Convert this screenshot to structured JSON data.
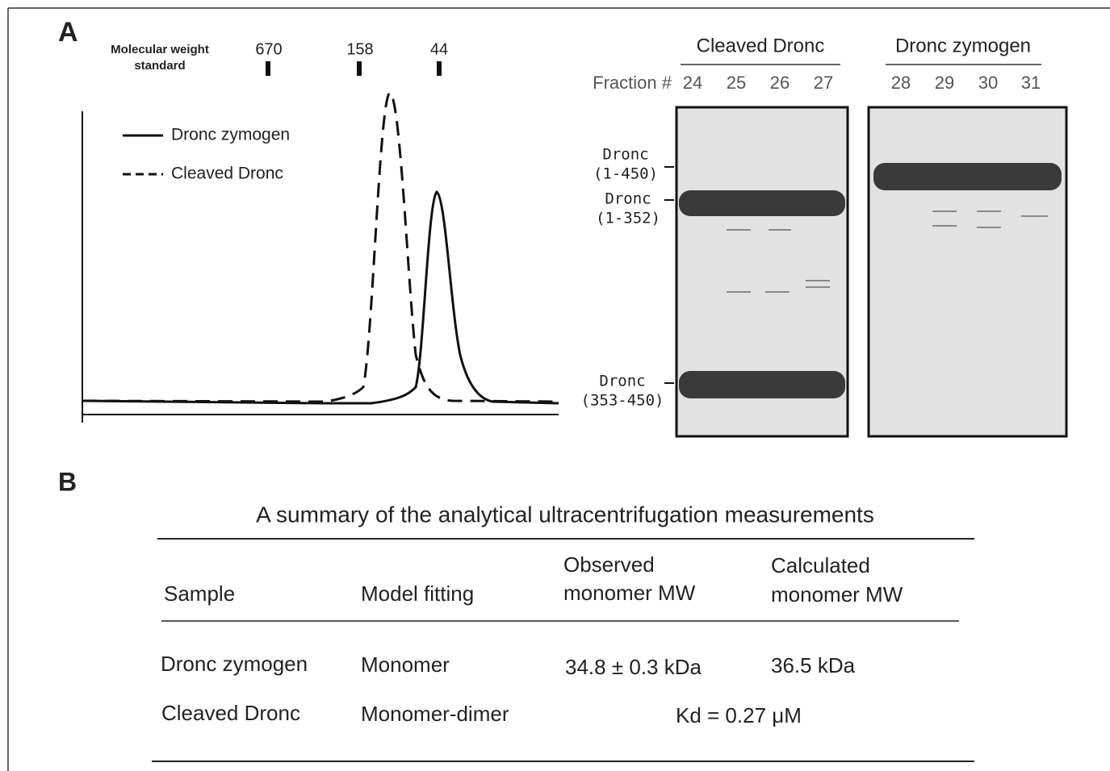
{
  "panel_a": {
    "label": "A",
    "mw_standard": {
      "label_lines": [
        "Molecular weight",
        "standard"
      ],
      "markers": [
        "670",
        "158",
        "44"
      ]
    },
    "legend": [
      "Dronc zymogen",
      "Cleaved Dronc"
    ],
    "gel": {
      "fraction_label": "Fraction #",
      "groups": [
        {
          "title": "Cleaved Dronc",
          "fractions": [
            "24",
            "25",
            "26",
            "27"
          ]
        },
        {
          "title": "Dronc zymogen",
          "fractions": [
            "28",
            "29",
            "30",
            "31"
          ]
        }
      ],
      "bands": [
        {
          "name": "Dronc",
          "range": "(1-450)"
        },
        {
          "name": "Dronc",
          "range": "(1-352)"
        },
        {
          "name": "Dronc",
          "range": "(353-450)"
        }
      ]
    }
  },
  "panel_b": {
    "label": "B",
    "title": "A summary of the analytical ultracentrifugation measurements",
    "table": {
      "header": [
        [
          "Sample"
        ],
        [
          "Model fitting"
        ],
        [
          "Observed",
          "monomer MW"
        ],
        [
          "Calculated",
          "monomer MW"
        ]
      ],
      "rows": [
        [
          "Dronc zymogen",
          "Monomer",
          "34.8 ± 0.3 kDa",
          "36.5 kDa"
        ],
        [
          "Cleaved Dronc",
          "Monomer-dimer",
          "Kd = 0.27 μM"
        ]
      ]
    }
  }
}
